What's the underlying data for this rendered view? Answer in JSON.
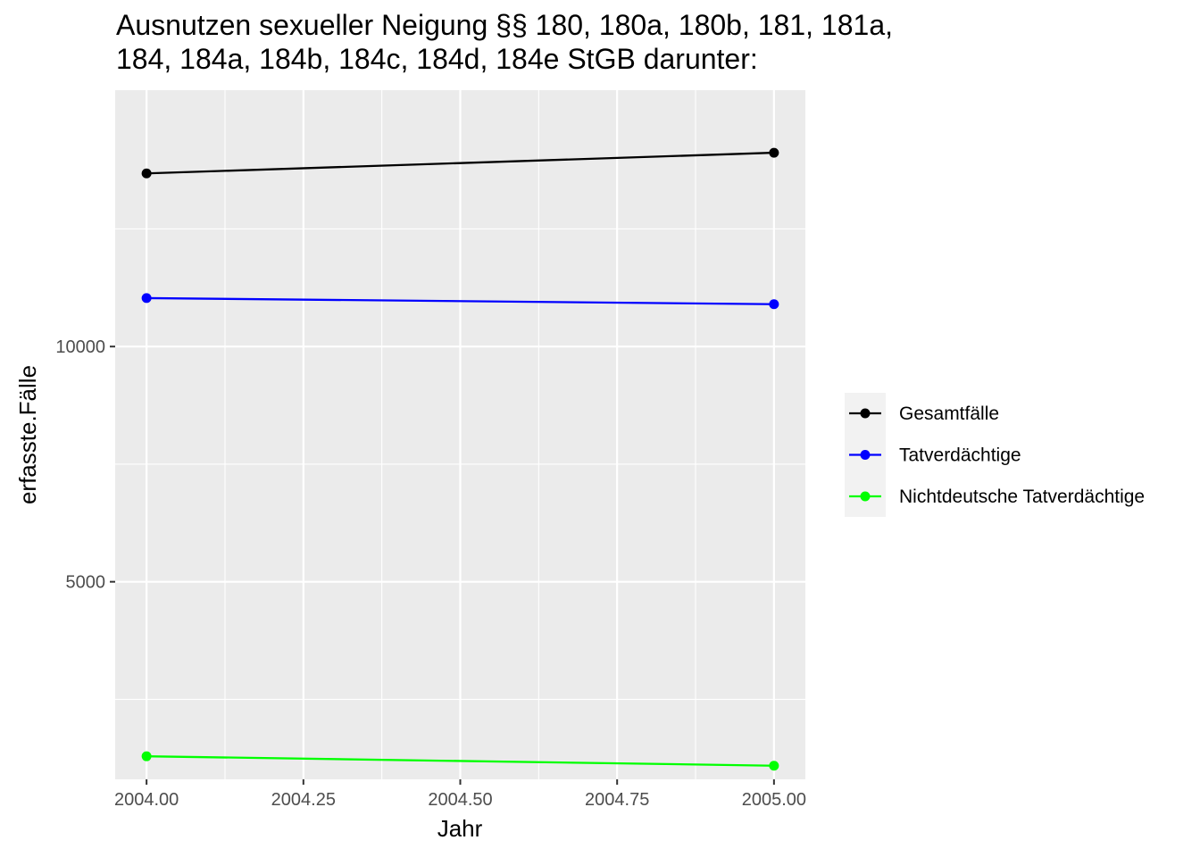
{
  "chart_data": {
    "type": "line",
    "title_lines": [
      "Ausnutzen sexueller Neigung §§ 180, 180a, 180b, 181, 181a,",
      "184, 184a, 184b, 184c, 184d, 184e StGB darunter:"
    ],
    "xlabel": "Jahr",
    "ylabel": "erfasste.Fälle",
    "x": [
      2004,
      2005
    ],
    "x_ticks": [
      "2004.00",
      "2004.25",
      "2004.50",
      "2004.75",
      "2005.00"
    ],
    "x_tick_values": [
      2004.0,
      2004.25,
      2004.5,
      2004.75,
      2005.0
    ],
    "y_ticks": [
      "5000",
      "10000"
    ],
    "y_tick_values": [
      5000,
      10000
    ],
    "xlim": [
      2003.95,
      2005.05
    ],
    "ylim": [
      800,
      15450
    ],
    "grid": true,
    "legend_position": "right",
    "series": [
      {
        "name": "Gesamtfälle",
        "color": "#000000",
        "values": [
          13680,
          14120
        ]
      },
      {
        "name": "Tatverdächtige",
        "color": "#0000ff",
        "values": [
          11030,
          10900
        ]
      },
      {
        "name": "Nichtdeutsche Tatverdächtige",
        "color": "#00ff00",
        "values": [
          1290,
          1090
        ]
      }
    ]
  }
}
